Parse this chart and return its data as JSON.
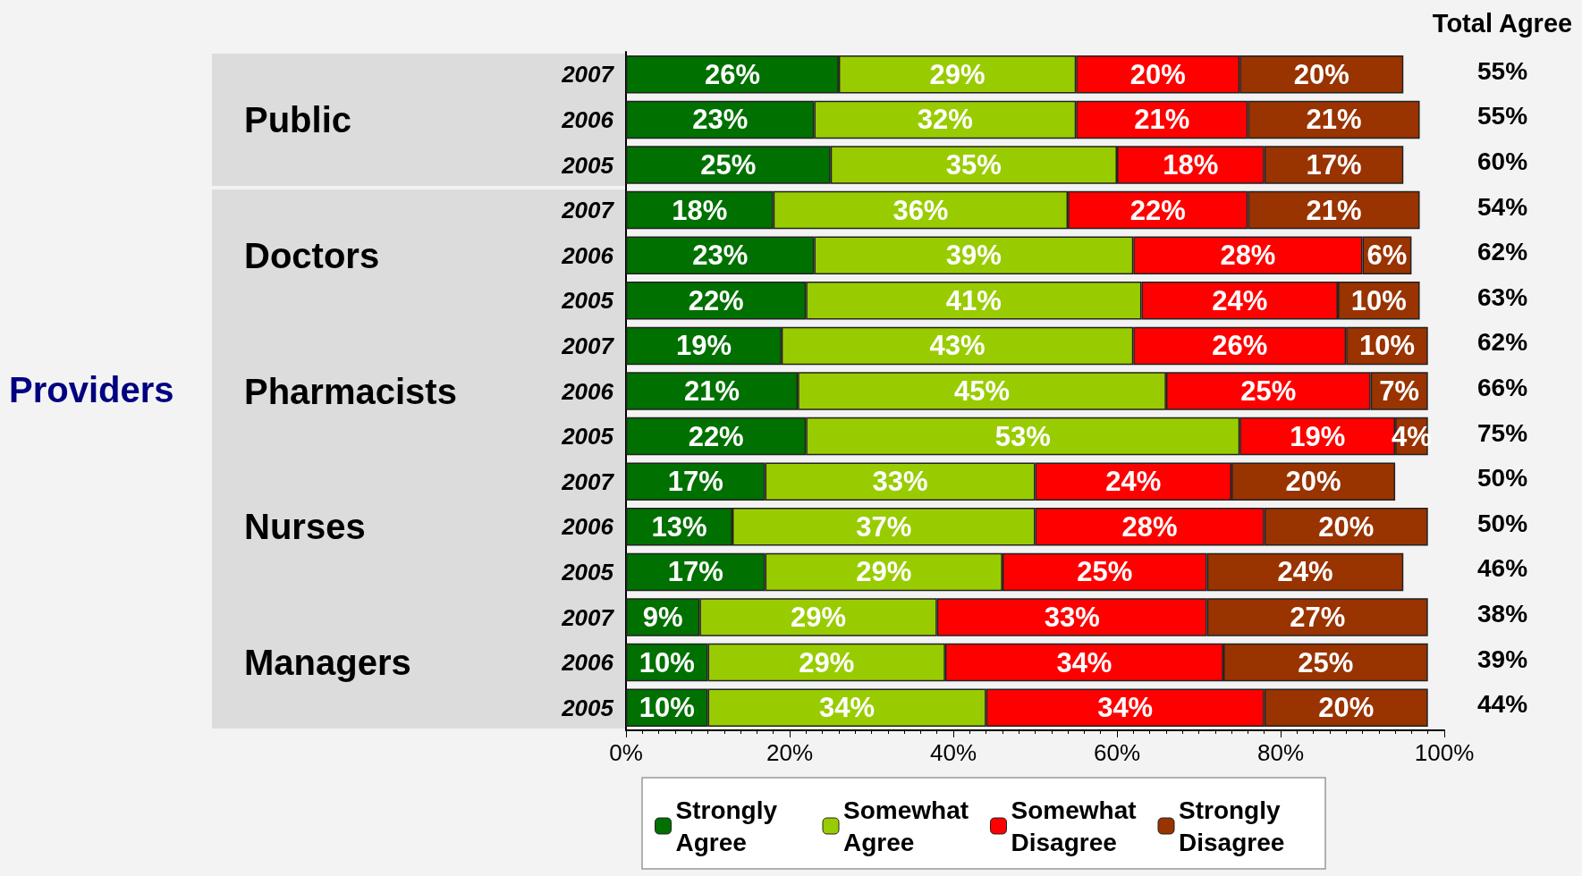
{
  "chart_data": {
    "type": "bar",
    "orientation": "horizontal",
    "stacked": true,
    "data_labels": true,
    "legend": "bottom",
    "grid": false,
    "categories": [
      "2007",
      "2006",
      "2005",
      "2007",
      "2006",
      "2005",
      "2007",
      "2006",
      "2005",
      "2007",
      "2006",
      "2005",
      "2007",
      "2006",
      "2005"
    ],
    "xlim": [
      0,
      100
    ],
    "xticks": [
      {
        "value": 0,
        "label": "0%"
      },
      {
        "value": 20,
        "label": "20%"
      },
      {
        "value": 40,
        "label": "40%"
      },
      {
        "value": 60,
        "label": "60%"
      },
      {
        "value": 80,
        "label": "80%"
      },
      {
        "value": 100,
        "label": "100%"
      }
    ],
    "series": [
      {
        "name": "Strongly Agree",
        "color": "#007000",
        "values": [
          26,
          23,
          25,
          18,
          23,
          22,
          19,
          21,
          22,
          17,
          13,
          17,
          9,
          10,
          10
        ],
        "value_labels": [
          "26%",
          "23%",
          "25%",
          "18%",
          "23%",
          "22%",
          "19%",
          "21%",
          "22%",
          "17%",
          "13%",
          "17%",
          "9%",
          "10%",
          "10%"
        ]
      },
      {
        "name": "Somewhat Agree",
        "color": "#99cc00",
        "values": [
          29,
          32,
          35,
          36,
          39,
          41,
          43,
          45,
          53,
          33,
          37,
          29,
          29,
          29,
          34
        ],
        "value_labels": [
          "29%",
          "32%",
          "35%",
          "36%",
          "39%",
          "41%",
          "43%",
          "45%",
          "53%",
          "33%",
          "37%",
          "29%",
          "29%",
          "29%",
          "34%"
        ]
      },
      {
        "name": "Somewhat Disagree",
        "color": "#ff0000",
        "values": [
          20,
          21,
          18,
          22,
          28,
          24,
          26,
          25,
          19,
          24,
          28,
          25,
          33,
          34,
          34
        ],
        "value_labels": [
          "20%",
          "21%",
          "18%",
          "22%",
          "28%",
          "24%",
          "26%",
          "25%",
          "19%",
          "24%",
          "28%",
          "25%",
          "33%",
          "34%",
          "34%"
        ]
      },
      {
        "name": "Strongly Disagree",
        "color": "#993300",
        "values": [
          20,
          21,
          17,
          21,
          6,
          10,
          10,
          7,
          4,
          20,
          20,
          24,
          27,
          25,
          20
        ],
        "value_labels": [
          "20%",
          "21%",
          "17%",
          "21%",
          "6%",
          "10%",
          "10%",
          "7%",
          "4%",
          "20%",
          "20%",
          "24%",
          "27%",
          "25%",
          "20%"
        ]
      }
    ],
    "annotations": [
      "Total Agree",
      "55%",
      "55%",
      "60%",
      "54%",
      "62%",
      "63%",
      "62%",
      "66%",
      "75%",
      "50%",
      "50%",
      "46%",
      "38%",
      "39%",
      "44%",
      "Public",
      "Doctors",
      "Pharmacists",
      "Nurses",
      "Managers",
      "Providers"
    ]
  }
}
